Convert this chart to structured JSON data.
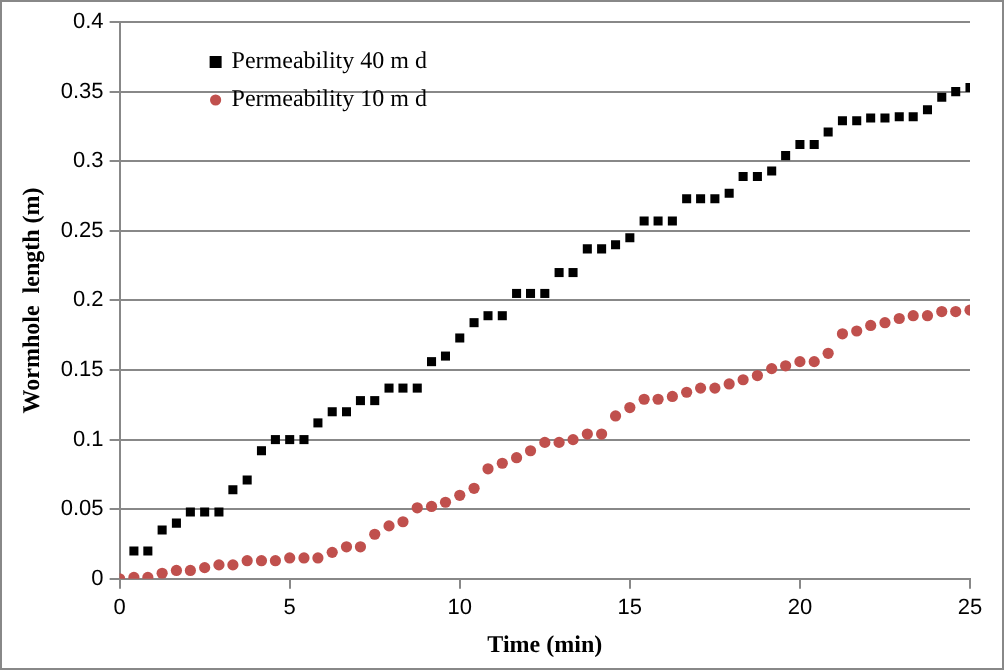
{
  "chart_data": {
    "type": "scatter",
    "xlabel": "Time (min)",
    "ylabel": "Wormhole  length (m)",
    "xlim": [
      0,
      25
    ],
    "xticks": [
      0,
      5,
      10,
      15,
      20,
      25
    ],
    "ylim": [
      0,
      0.4
    ],
    "yticks": [
      0,
      0.05,
      0.1,
      0.15,
      0.2,
      0.25,
      0.3,
      0.35,
      0.4
    ],
    "grid": "y",
    "legend": "top left",
    "series": [
      {
        "name": "Permeability 40 m d",
        "color": "#000000",
        "marker": "square",
        "x": [
          0.42,
          0.83,
          1.25,
          1.67,
          2.08,
          2.5,
          2.92,
          3.33,
          3.75,
          4.17,
          4.58,
          5,
          5.42,
          5.83,
          6.25,
          6.67,
          7.08,
          7.5,
          7.92,
          8.33,
          8.75,
          9.17,
          9.58,
          10,
          10.42,
          10.83,
          11.25,
          11.67,
          12.08,
          12.5,
          12.92,
          13.33,
          13.75,
          14.17,
          14.58,
          15,
          15.42,
          15.83,
          16.25,
          16.67,
          17.08,
          17.5,
          17.92,
          18.33,
          18.75,
          19.17,
          19.58,
          20,
          20.42,
          20.83,
          21.25,
          21.67,
          22.08,
          22.5,
          22.92,
          23.33,
          23.75,
          24.17,
          24.58,
          25
        ],
        "values": [
          0.02,
          0.02,
          0.035,
          0.04,
          0.048,
          0.048,
          0.048,
          0.064,
          0.071,
          0.092,
          0.1,
          0.1,
          0.1,
          0.112,
          0.12,
          0.12,
          0.128,
          0.128,
          0.137,
          0.137,
          0.137,
          0.156,
          0.16,
          0.173,
          0.184,
          0.189,
          0.189,
          0.205,
          0.205,
          0.205,
          0.22,
          0.22,
          0.237,
          0.237,
          0.24,
          0.245,
          0.257,
          0.257,
          0.257,
          0.273,
          0.273,
          0.273,
          0.277,
          0.289,
          0.289,
          0.293,
          0.304,
          0.312,
          0.312,
          0.321,
          0.329,
          0.329,
          0.331,
          0.331,
          0.332,
          0.332,
          0.337,
          0.346,
          0.35,
          0.353
        ]
      },
      {
        "name": "Permeability 10 m d",
        "color": "#c0504d",
        "marker": "circle",
        "x": [
          0,
          0.42,
          0.83,
          1.25,
          1.67,
          2.08,
          2.5,
          2.92,
          3.33,
          3.75,
          4.17,
          4.58,
          5,
          5.42,
          5.83,
          6.25,
          6.67,
          7.08,
          7.5,
          7.92,
          8.33,
          8.75,
          9.17,
          9.58,
          10,
          10.42,
          10.83,
          11.25,
          11.67,
          12.08,
          12.5,
          12.92,
          13.33,
          13.75,
          14.17,
          14.58,
          15,
          15.42,
          15.83,
          16.25,
          16.67,
          17.08,
          17.5,
          17.92,
          18.33,
          18.75,
          19.17,
          19.58,
          20,
          20.42,
          20.83,
          21.25,
          21.67,
          22.08,
          22.5,
          22.92,
          23.33,
          23.75,
          24.17,
          24.58,
          25
        ],
        "values": [
          0,
          0.001,
          0.001,
          0.004,
          0.006,
          0.006,
          0.008,
          0.01,
          0.01,
          0.013,
          0.013,
          0.013,
          0.015,
          0.015,
          0.015,
          0.019,
          0.023,
          0.023,
          0.032,
          0.038,
          0.041,
          0.051,
          0.052,
          0.055,
          0.06,
          0.065,
          0.079,
          0.083,
          0.087,
          0.092,
          0.098,
          0.098,
          0.1,
          0.104,
          0.104,
          0.117,
          0.123,
          0.129,
          0.129,
          0.131,
          0.134,
          0.137,
          0.137,
          0.14,
          0.143,
          0.146,
          0.151,
          0.153,
          0.156,
          0.156,
          0.162,
          0.176,
          0.178,
          0.182,
          0.184,
          0.187,
          0.189,
          0.189,
          0.192,
          0.192,
          0.193
        ]
      }
    ]
  }
}
